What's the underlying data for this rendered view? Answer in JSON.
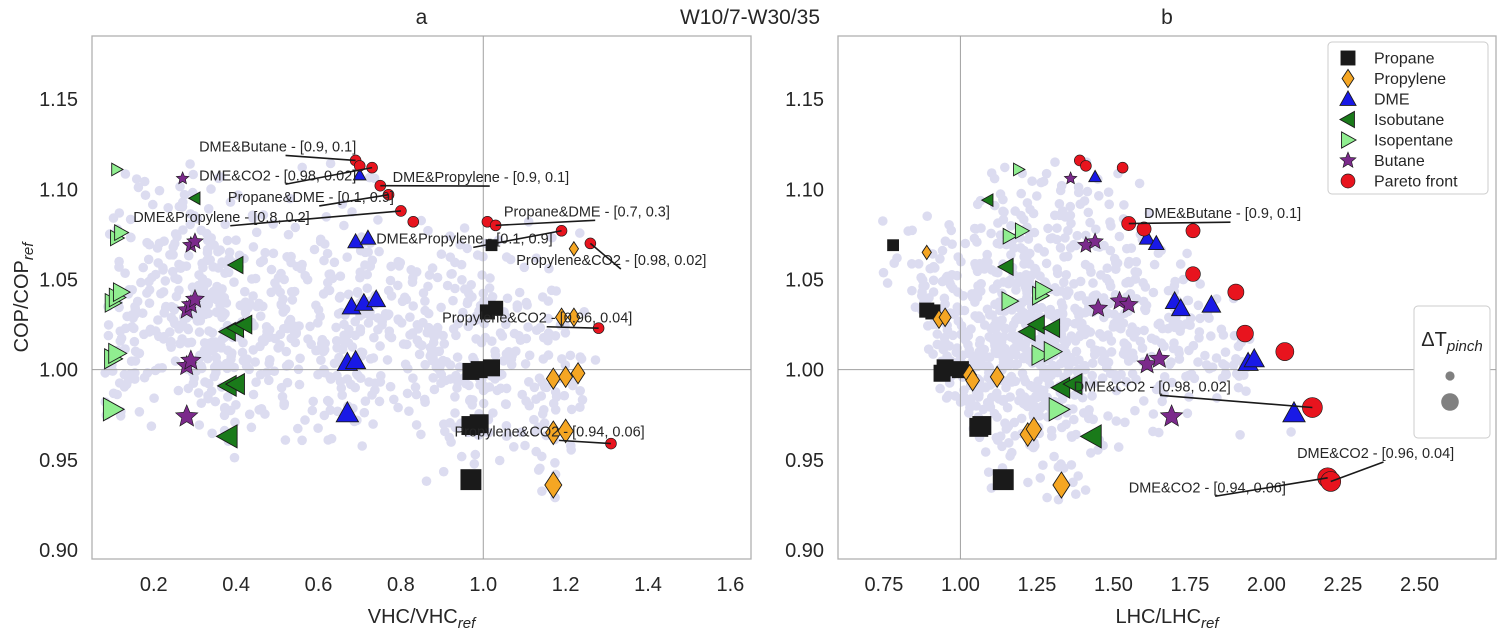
{
  "figure": {
    "suptitle": "W10/7-W30/35",
    "colors": {
      "background_cloud": "#dcdcf0",
      "propane": "#1a1a1a",
      "propylene": "#f5a623",
      "dme": "#1919e6",
      "isobutane": "#1a7a1a",
      "isopentane": "#90ee90",
      "butane": "#7b2a8b",
      "pareto": "#e8141e",
      "axis": "#b0b0b0",
      "refline": "#a0a0a0"
    }
  },
  "chart_data": [
    {
      "id": "a",
      "type": "scatter",
      "title": "a",
      "xlabel": "VHC/VHC",
      "xlabel_sub": "ref",
      "ylabel": "COP/COP",
      "ylabel_sub": "ref",
      "xlim": [
        0.05,
        1.65
      ],
      "ylim": [
        0.895,
        1.185
      ],
      "xticks": [
        0.2,
        0.4,
        0.6,
        0.8,
        1.0,
        1.2,
        1.4,
        1.6
      ],
      "xtick_labels": [
        "0.2",
        "0.4",
        "0.6",
        "0.8",
        "1.0",
        "1.2",
        "1.4",
        "1.6"
      ],
      "yticks": [
        0.9,
        0.95,
        1.0,
        1.05,
        1.1,
        1.15
      ],
      "ytick_labels": [
        "0.90",
        "0.95",
        "1.00",
        "1.05",
        "1.10",
        "1.15"
      ],
      "ref_x": 1.0,
      "ref_y": 1.0,
      "series": [
        {
          "name": "Propane",
          "marker": "square",
          "points": [
            {
              "x": 1.02,
              "y": 1.069,
              "s": 0.3
            },
            {
              "x": 1.01,
              "y": 1.032,
              "s": 0.55
            },
            {
              "x": 1.03,
              "y": 1.034,
              "s": 0.55
            },
            {
              "x": 0.97,
              "y": 0.999,
              "s": 0.7
            },
            {
              "x": 0.99,
              "y": 1.0,
              "s": 0.7
            },
            {
              "x": 1.02,
              "y": 1.001,
              "s": 0.7
            },
            {
              "x": 0.97,
              "y": 0.969,
              "s": 0.85
            },
            {
              "x": 0.99,
              "y": 0.97,
              "s": 0.85
            },
            {
              "x": 0.97,
              "y": 0.939,
              "s": 1.0
            }
          ]
        },
        {
          "name": "Propylene",
          "marker": "diamond",
          "points": [
            {
              "x": 1.22,
              "y": 1.067,
              "s": 0.3
            },
            {
              "x": 1.19,
              "y": 1.029,
              "s": 0.55
            },
            {
              "x": 1.22,
              "y": 1.029,
              "s": 0.55
            },
            {
              "x": 1.17,
              "y": 0.995,
              "s": 0.7
            },
            {
              "x": 1.2,
              "y": 0.996,
              "s": 0.7
            },
            {
              "x": 1.23,
              "y": 0.998,
              "s": 0.7
            },
            {
              "x": 1.17,
              "y": 0.965,
              "s": 0.85
            },
            {
              "x": 1.2,
              "y": 0.966,
              "s": 0.85
            },
            {
              "x": 1.17,
              "y": 0.936,
              "s": 1.0
            }
          ]
        },
        {
          "name": "DME",
          "marker": "triangle-up",
          "points": [
            {
              "x": 0.7,
              "y": 1.108,
              "s": 0.3
            },
            {
              "x": 0.69,
              "y": 1.071,
              "s": 0.5
            },
            {
              "x": 0.72,
              "y": 1.073,
              "s": 0.5
            },
            {
              "x": 0.68,
              "y": 1.035,
              "s": 0.7
            },
            {
              "x": 0.71,
              "y": 1.037,
              "s": 0.7
            },
            {
              "x": 0.74,
              "y": 1.039,
              "s": 0.7
            },
            {
              "x": 0.67,
              "y": 1.004,
              "s": 0.8
            },
            {
              "x": 0.69,
              "y": 1.005,
              "s": 0.8
            },
            {
              "x": 0.67,
              "y": 0.976,
              "s": 0.95
            }
          ]
        },
        {
          "name": "Isobutane",
          "marker": "triangle-left",
          "points": [
            {
              "x": 0.3,
              "y": 1.095,
              "s": 0.3
            },
            {
              "x": 0.4,
              "y": 1.058,
              "s": 0.6
            },
            {
              "x": 0.38,
              "y": 1.021,
              "s": 0.7
            },
            {
              "x": 0.4,
              "y": 1.023,
              "s": 0.7
            },
            {
              "x": 0.42,
              "y": 1.025,
              "s": 0.7
            },
            {
              "x": 0.38,
              "y": 0.991,
              "s": 0.85
            },
            {
              "x": 0.4,
              "y": 0.992,
              "s": 0.85
            },
            {
              "x": 0.38,
              "y": 0.963,
              "s": 1.0
            }
          ]
        },
        {
          "name": "Isopentane",
          "marker": "triangle-right",
          "points": [
            {
              "x": 0.11,
              "y": 1.111,
              "s": 0.3
            },
            {
              "x": 0.11,
              "y": 1.073,
              "s": 0.5
            },
            {
              "x": 0.12,
              "y": 1.076,
              "s": 0.5
            },
            {
              "x": 0.1,
              "y": 1.037,
              "s": 0.7
            },
            {
              "x": 0.11,
              "y": 1.04,
              "s": 0.7
            },
            {
              "x": 0.12,
              "y": 1.043,
              "s": 0.7
            },
            {
              "x": 0.1,
              "y": 1.006,
              "s": 0.8
            },
            {
              "x": 0.11,
              "y": 1.009,
              "s": 0.8
            },
            {
              "x": 0.1,
              "y": 0.978,
              "s": 1.0
            }
          ]
        },
        {
          "name": "Butane",
          "marker": "star",
          "points": [
            {
              "x": 0.27,
              "y": 1.106,
              "s": 0.3
            },
            {
              "x": 0.29,
              "y": 1.069,
              "s": 0.55
            },
            {
              "x": 0.3,
              "y": 1.071,
              "s": 0.55
            },
            {
              "x": 0.28,
              "y": 1.033,
              "s": 0.7
            },
            {
              "x": 0.29,
              "y": 1.036,
              "s": 0.7
            },
            {
              "x": 0.3,
              "y": 1.039,
              "s": 0.7
            },
            {
              "x": 0.28,
              "y": 1.002,
              "s": 0.8
            },
            {
              "x": 0.29,
              "y": 1.005,
              "s": 0.8
            },
            {
              "x": 0.28,
              "y": 0.974,
              "s": 0.95
            }
          ]
        },
        {
          "name": "Pareto front",
          "marker": "circle",
          "points": [
            {
              "x": 0.69,
              "y": 1.116,
              "s": 0.3
            },
            {
              "x": 0.7,
              "y": 1.113,
              "s": 0.3
            },
            {
              "x": 0.73,
              "y": 1.112,
              "s": 0.3
            },
            {
              "x": 0.75,
              "y": 1.102,
              "s": 0.3
            },
            {
              "x": 0.77,
              "y": 1.097,
              "s": 0.3
            },
            {
              "x": 0.8,
              "y": 1.088,
              "s": 0.3
            },
            {
              "x": 0.83,
              "y": 1.082,
              "s": 0.3
            },
            {
              "x": 1.01,
              "y": 1.082,
              "s": 0.3
            },
            {
              "x": 1.03,
              "y": 1.08,
              "s": 0.3
            },
            {
              "x": 1.19,
              "y": 1.077,
              "s": 0.3
            },
            {
              "x": 1.26,
              "y": 1.07,
              "s": 0.3
            },
            {
              "x": 1.28,
              "y": 1.023,
              "s": 0.3
            },
            {
              "x": 1.31,
              "y": 0.959,
              "s": 0.3
            }
          ]
        }
      ],
      "annotations": [
        {
          "text": "DME&Butane - [0.9, 0.1]",
          "x": 0.31,
          "y": 1.121,
          "tx": 0.69,
          "ty": 1.116
        },
        {
          "text": "DME&CO2 - [0.98, 0.02]",
          "x": 0.31,
          "y": 1.105,
          "tx": 0.73,
          "ty": 1.112
        },
        {
          "text": "DME&Propylene - [0.9, 0.1]",
          "x": 0.78,
          "y": 1.104,
          "tx": 0.75,
          "ty": 1.102
        },
        {
          "text": "Propane&DME - [0.1, 0.9]",
          "x": 0.38,
          "y": 1.093,
          "tx": 0.77,
          "ty": 1.097
        },
        {
          "text": "DME&Propylene - [0.8, 0.2]",
          "x": 0.15,
          "y": 1.082,
          "tx": 0.8,
          "ty": 1.088
        },
        {
          "text": "Propane&DME - [0.7, 0.3]",
          "x": 1.05,
          "y": 1.085,
          "tx": 1.03,
          "ty": 1.08
        },
        {
          "text": "DME&Propylene - [0.1, 0.9]",
          "x": 0.74,
          "y": 1.07,
          "tx": 1.19,
          "ty": 1.077
        },
        {
          "text": "Propylene&CO2 - [0.98, 0.02]",
          "x": 1.08,
          "y": 1.058,
          "tx": 1.26,
          "ty": 1.07
        },
        {
          "text": "Propylene&CO2 - [0.96, 0.04]",
          "x": 0.9,
          "y": 1.026,
          "tx": 1.28,
          "ty": 1.023
        },
        {
          "text": "Propylene&CO2 - [0.94, 0.06]",
          "x": 0.93,
          "y": 0.963,
          "tx": 1.31,
          "ty": 0.959
        }
      ]
    },
    {
      "id": "b",
      "type": "scatter",
      "title": "b",
      "xlabel": "LHC/LHC",
      "xlabel_sub": "ref",
      "xlim": [
        0.6,
        2.75
      ],
      "ylim": [
        0.895,
        1.185
      ],
      "xticks": [
        0.75,
        1.0,
        1.25,
        1.5,
        1.75,
        2.0,
        2.25,
        2.5
      ],
      "xtick_labels": [
        "0.75",
        "1.00",
        "1.25",
        "1.50",
        "1.75",
        "2.00",
        "2.25",
        "2.50"
      ],
      "yticks": [
        0.9,
        0.95,
        1.0,
        1.05,
        1.1,
        1.15
      ],
      "ytick_labels": [
        "0.90",
        "0.95",
        "1.00",
        "1.05",
        "1.10",
        "1.15"
      ],
      "ref_x": 1.0,
      "ref_y": 1.0,
      "series": [
        {
          "name": "Propane",
          "marker": "square",
          "points": [
            {
              "x": 0.78,
              "y": 1.069,
              "s": 0.3
            },
            {
              "x": 0.89,
              "y": 1.033,
              "s": 0.55
            },
            {
              "x": 0.91,
              "y": 1.032,
              "s": 0.55
            },
            {
              "x": 0.94,
              "y": 0.998,
              "s": 0.7
            },
            {
              "x": 0.95,
              "y": 1.001,
              "s": 0.7
            },
            {
              "x": 1.0,
              "y": 1.0,
              "s": 0.7
            },
            {
              "x": 1.06,
              "y": 0.968,
              "s": 0.85
            },
            {
              "x": 1.07,
              "y": 0.969,
              "s": 0.85
            },
            {
              "x": 1.14,
              "y": 0.939,
              "s": 1.0
            }
          ]
        },
        {
          "name": "Propylene",
          "marker": "diamond",
          "points": [
            {
              "x": 0.89,
              "y": 1.065,
              "s": 0.3
            },
            {
              "x": 0.93,
              "y": 1.028,
              "s": 0.55
            },
            {
              "x": 0.95,
              "y": 1.029,
              "s": 0.55
            },
            {
              "x": 1.03,
              "y": 0.997,
              "s": 0.7
            },
            {
              "x": 1.04,
              "y": 0.994,
              "s": 0.7
            },
            {
              "x": 1.12,
              "y": 0.996,
              "s": 0.7
            },
            {
              "x": 1.22,
              "y": 0.964,
              "s": 0.85
            },
            {
              "x": 1.24,
              "y": 0.967,
              "s": 0.85
            },
            {
              "x": 1.33,
              "y": 0.936,
              "s": 1.0
            }
          ]
        },
        {
          "name": "DME",
          "marker": "triangle-up",
          "points": [
            {
              "x": 1.44,
              "y": 1.107,
              "s": 0.3
            },
            {
              "x": 1.61,
              "y": 1.073,
              "s": 0.5
            },
            {
              "x": 1.64,
              "y": 1.07,
              "s": 0.5
            },
            {
              "x": 1.7,
              "y": 1.038,
              "s": 0.7
            },
            {
              "x": 1.72,
              "y": 1.034,
              "s": 0.7
            },
            {
              "x": 1.82,
              "y": 1.036,
              "s": 0.7
            },
            {
              "x": 1.94,
              "y": 1.004,
              "s": 0.8
            },
            {
              "x": 1.96,
              "y": 1.006,
              "s": 0.8
            },
            {
              "x": 2.09,
              "y": 0.976,
              "s": 0.95
            }
          ]
        },
        {
          "name": "Isobutane",
          "marker": "triangle-left",
          "points": [
            {
              "x": 1.09,
              "y": 1.094,
              "s": 0.3
            },
            {
              "x": 1.15,
              "y": 1.057,
              "s": 0.6
            },
            {
              "x": 1.22,
              "y": 1.021,
              "s": 0.7
            },
            {
              "x": 1.25,
              "y": 1.025,
              "s": 0.7
            },
            {
              "x": 1.3,
              "y": 1.023,
              "s": 0.7
            },
            {
              "x": 1.33,
              "y": 0.99,
              "s": 0.85
            },
            {
              "x": 1.37,
              "y": 0.992,
              "s": 0.85
            },
            {
              "x": 1.43,
              "y": 0.963,
              "s": 1.0
            }
          ]
        },
        {
          "name": "Isopentane",
          "marker": "triangle-right",
          "points": [
            {
              "x": 1.19,
              "y": 1.111,
              "s": 0.3
            },
            {
              "x": 1.16,
              "y": 1.074,
              "s": 0.5
            },
            {
              "x": 1.2,
              "y": 1.077,
              "s": 0.5
            },
            {
              "x": 1.16,
              "y": 1.038,
              "s": 0.7
            },
            {
              "x": 1.26,
              "y": 1.041,
              "s": 0.7
            },
            {
              "x": 1.27,
              "y": 1.044,
              "s": 0.7
            },
            {
              "x": 1.26,
              "y": 1.008,
              "s": 0.8
            },
            {
              "x": 1.3,
              "y": 1.01,
              "s": 0.8
            },
            {
              "x": 1.32,
              "y": 0.978,
              "s": 1.0
            }
          ]
        },
        {
          "name": "Butane",
          "marker": "star",
          "points": [
            {
              "x": 1.36,
              "y": 1.106,
              "s": 0.3
            },
            {
              "x": 1.41,
              "y": 1.069,
              "s": 0.55
            },
            {
              "x": 1.44,
              "y": 1.071,
              "s": 0.55
            },
            {
              "x": 1.45,
              "y": 1.034,
              "s": 0.7
            },
            {
              "x": 1.52,
              "y": 1.038,
              "s": 0.7
            },
            {
              "x": 1.55,
              "y": 1.036,
              "s": 0.7
            },
            {
              "x": 1.61,
              "y": 1.003,
              "s": 0.8
            },
            {
              "x": 1.65,
              "y": 1.006,
              "s": 0.8
            },
            {
              "x": 1.69,
              "y": 0.974,
              "s": 0.95
            }
          ]
        },
        {
          "name": "Pareto front",
          "marker": "circle",
          "points": [
            {
              "x": 1.39,
              "y": 1.116,
              "s": 0.3
            },
            {
              "x": 1.41,
              "y": 1.113,
              "s": 0.3
            },
            {
              "x": 1.53,
              "y": 1.112,
              "s": 0.3
            },
            {
              "x": 1.55,
              "y": 1.081,
              "s": 0.55
            },
            {
              "x": 1.6,
              "y": 1.078,
              "s": 0.55
            },
            {
              "x": 1.76,
              "y": 1.077,
              "s": 0.55
            },
            {
              "x": 1.76,
              "y": 1.053,
              "s": 0.6
            },
            {
              "x": 1.9,
              "y": 1.043,
              "s": 0.7
            },
            {
              "x": 1.93,
              "y": 1.02,
              "s": 0.75
            },
            {
              "x": 2.06,
              "y": 1.01,
              "s": 0.85
            },
            {
              "x": 2.15,
              "y": 0.979,
              "s": 1.0
            },
            {
              "x": 2.2,
              "y": 0.94,
              "s": 1.0
            },
            {
              "x": 2.21,
              "y": 0.938,
              "s": 1.0
            }
          ]
        }
      ],
      "annotations": [
        {
          "text": "DME&Butane - [0.9, 0.1]",
          "x": 1.6,
          "y": 1.084,
          "tx": 1.55,
          "ty": 1.081
        },
        {
          "text": "DME&CO2 - [0.98, 0.02]",
          "x": 1.37,
          "y": 0.988,
          "tx": 2.15,
          "ty": 0.979
        },
        {
          "text": "DME&CO2 - [0.96, 0.04]",
          "x": 2.1,
          "y": 0.951,
          "tx": 2.21,
          "ty": 0.938
        },
        {
          "text": "DME&CO2 - [0.94, 0.06]",
          "x": 1.55,
          "y": 0.932,
          "tx": 2.2,
          "ty": 0.94
        }
      ],
      "legend": {
        "placement": "top-right",
        "entries": [
          "Propane",
          "Propylene",
          "DME",
          "Isobutane",
          "Isopentane",
          "Butane",
          "Pareto front"
        ]
      },
      "size_legend": {
        "title": "ΔT",
        "title_sub": "pinch",
        "placement": "right",
        "sizes": [
          0.3,
          1.0
        ]
      }
    }
  ]
}
